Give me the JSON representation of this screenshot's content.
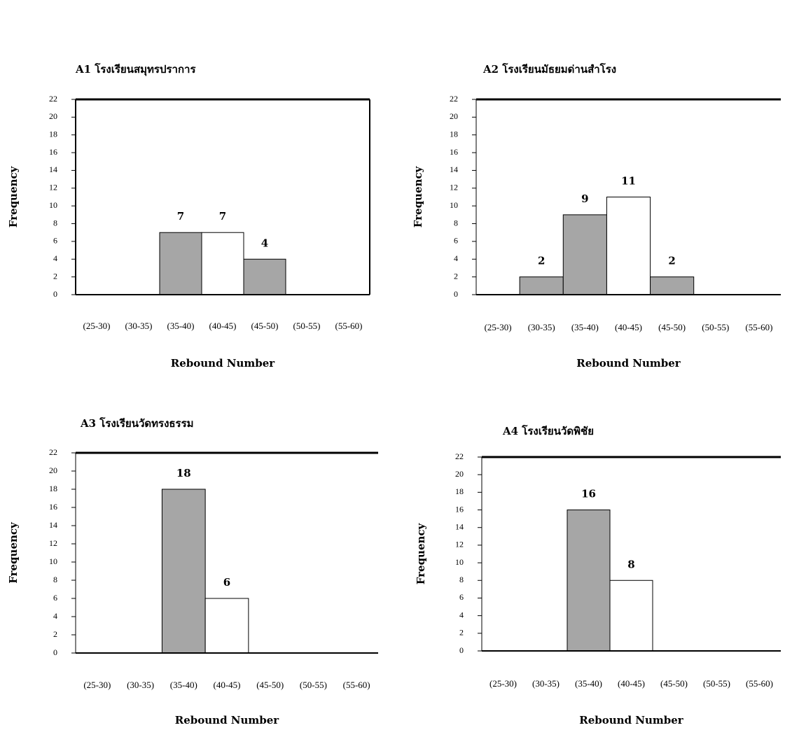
{
  "chart_data": [
    {
      "type": "bar",
      "title": "A1 โรงเรียนสมุทรปราการ",
      "x_label": "Rebound Number",
      "y_label": "Frequency",
      "categories": [
        "(25-30)",
        "(30-35)",
        "(35-40)",
        "(40-45)",
        "(45-50)",
        "(50-55)",
        "(55-60)"
      ],
      "values": [
        0,
        0,
        7,
        7,
        4,
        0,
        0
      ],
      "colors": [
        "#a6a6a6",
        "#a6a6a6",
        "#a6a6a6",
        "#ffffff",
        "#a6a6a6",
        "#a6a6a6",
        "#a6a6a6"
      ],
      "ylim": [
        0,
        22
      ],
      "yticks": [
        0,
        2,
        4,
        6,
        8,
        10,
        12,
        14,
        16,
        18,
        20,
        22
      ]
    },
    {
      "type": "bar",
      "title": "A2 โรงเรียนมัธยมด่านสำโรง",
      "x_label": "Rebound Number",
      "y_label": "Frequency",
      "categories": [
        "(25-30)",
        "(30-35)",
        "(35-40)",
        "(40-45)",
        "(45-50)",
        "(50-55)",
        "(55-60)"
      ],
      "values": [
        0,
        2,
        9,
        11,
        2,
        0,
        0
      ],
      "colors": [
        "#a6a6a6",
        "#a6a6a6",
        "#a6a6a6",
        "#ffffff",
        "#a6a6a6",
        "#a6a6a6",
        "#a6a6a6"
      ],
      "ylim": [
        0,
        22
      ],
      "yticks": [
        0,
        2,
        4,
        6,
        8,
        10,
        12,
        14,
        16,
        18,
        20,
        22
      ]
    },
    {
      "type": "bar",
      "title": "A3 โรงเรียนวัดทรงธรรม",
      "x_label": "Rebound Number",
      "y_label": "Frequency",
      "categories": [
        "(25-30)",
        "(30-35)",
        "(35-40)",
        "(40-45)",
        "(45-50)",
        "(50-55)",
        "(55-60)"
      ],
      "values": [
        0,
        0,
        18,
        6,
        0,
        0,
        0
      ],
      "colors": [
        "#a6a6a6",
        "#a6a6a6",
        "#a6a6a6",
        "#ffffff",
        "#a6a6a6",
        "#a6a6a6",
        "#a6a6a6"
      ],
      "ylim": [
        0,
        22
      ],
      "yticks": [
        0,
        2,
        4,
        6,
        8,
        10,
        12,
        14,
        16,
        18,
        20,
        22
      ]
    },
    {
      "type": "bar",
      "title": "A4 โรงเรียนวัดพิชัย",
      "x_label": "Rebound Number",
      "y_label": "Frequency",
      "categories": [
        "(25-30)",
        "(30-35)",
        "(35-40)",
        "(40-45)",
        "(45-50)",
        "(50-55)",
        "(55-60)"
      ],
      "values": [
        0,
        0,
        16,
        8,
        0,
        0,
        0
      ],
      "colors": [
        "#a6a6a6",
        "#a6a6a6",
        "#a6a6a6",
        "#ffffff",
        "#a6a6a6",
        "#a6a6a6",
        "#a6a6a6"
      ],
      "ylim": [
        0,
        22
      ],
      "yticks": [
        0,
        2,
        4,
        6,
        8,
        10,
        12,
        14,
        16,
        18,
        20,
        22
      ]
    }
  ]
}
